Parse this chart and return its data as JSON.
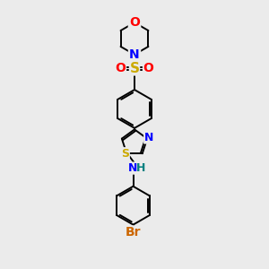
{
  "bg_color": "#ebebeb",
  "line_color": "#000000",
  "atom_colors": {
    "O": "#ff0000",
    "N": "#0000ff",
    "S_sulfonyl": "#ccaa00",
    "S_thiazole": "#ccaa00",
    "Br": "#cc6600",
    "NH": "#0000ff",
    "H": "#008080",
    "C": "#000000"
  },
  "line_width": 1.4,
  "font_size": 9,
  "figsize": [
    3.0,
    3.0
  ],
  "dpi": 100
}
